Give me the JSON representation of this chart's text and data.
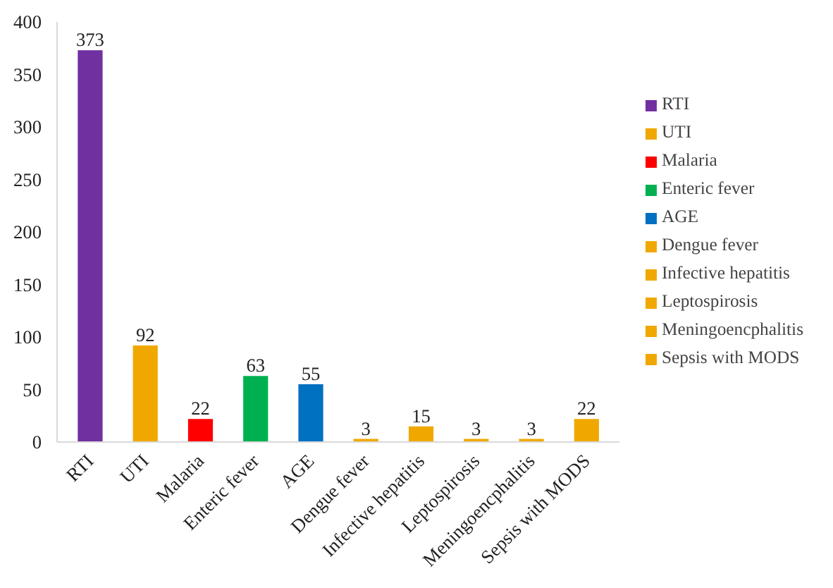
{
  "chart_data": {
    "type": "bar",
    "categories": [
      "RTI",
      "UTI",
      "Malaria",
      "Enteric fever",
      "AGE",
      "Dengue fever",
      "Infective hepatitis",
      "Leptospirosis",
      "Meningoencphalitis",
      "Sepsis with MODS"
    ],
    "series": [
      {
        "name": "RTI",
        "color": "#7030a0",
        "values": [
          373,
          null,
          null,
          null,
          null,
          null,
          null,
          null,
          null,
          null
        ]
      },
      {
        "name": "UTI",
        "color": "#f0a800",
        "values": [
          null,
          92,
          null,
          null,
          null,
          null,
          null,
          null,
          null,
          null
        ]
      },
      {
        "name": "Malaria",
        "color": "#ff0000",
        "values": [
          null,
          null,
          22,
          null,
          null,
          null,
          null,
          null,
          null,
          null
        ]
      },
      {
        "name": "Enteric fever",
        "color": "#00b050",
        "values": [
          null,
          null,
          null,
          63,
          null,
          null,
          null,
          null,
          null,
          null
        ]
      },
      {
        "name": "AGE",
        "color": "#0070c0",
        "values": [
          null,
          null,
          null,
          null,
          55,
          null,
          null,
          null,
          null,
          null
        ]
      },
      {
        "name": "Dengue fever",
        "color": "#f0a800",
        "values": [
          null,
          null,
          null,
          null,
          null,
          3,
          null,
          null,
          null,
          null
        ]
      },
      {
        "name": "Infective hepatitis",
        "color": "#f0a800",
        "values": [
          null,
          null,
          null,
          null,
          null,
          null,
          15,
          null,
          null,
          null
        ]
      },
      {
        "name": "Leptospirosis",
        "color": "#f0a800",
        "values": [
          null,
          null,
          null,
          null,
          null,
          null,
          null,
          3,
          null,
          null
        ]
      },
      {
        "name": "Meningoencphalitis",
        "color": "#f0a800",
        "values": [
          null,
          null,
          null,
          null,
          null,
          null,
          null,
          null,
          3,
          null
        ]
      },
      {
        "name": "Sepsis with MODS",
        "color": "#f0a800",
        "values": [
          null,
          null,
          null,
          null,
          null,
          null,
          null,
          null,
          null,
          22
        ]
      }
    ],
    "ylim": [
      0,
      400
    ],
    "yticks": [
      0,
      50,
      100,
      150,
      200,
      250,
      300,
      350,
      400
    ],
    "data_labels": true,
    "grid": false,
    "legend": "right"
  }
}
